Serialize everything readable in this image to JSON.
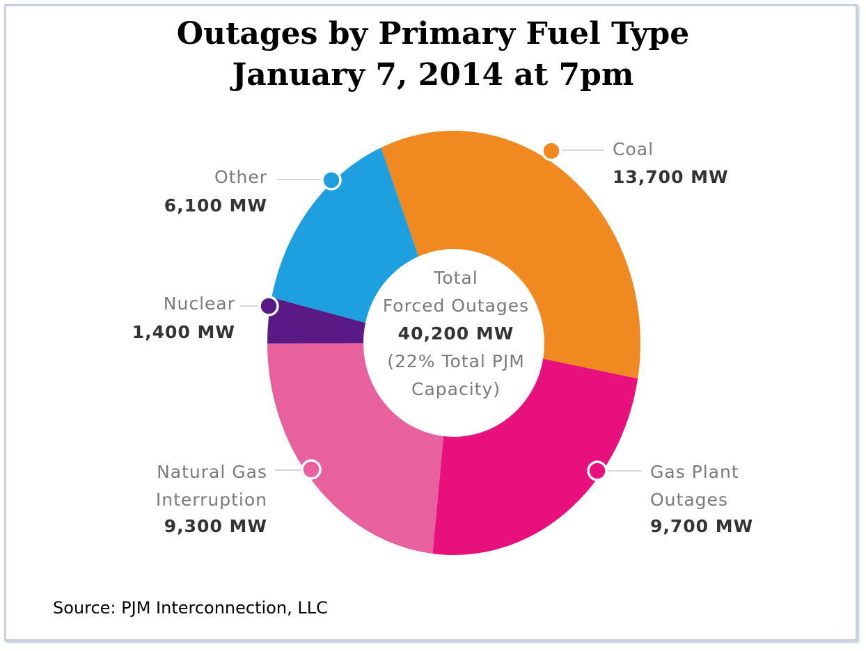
{
  "chart_data": {
    "type": "pie",
    "title": "Outages by Primary Fuel Type",
    "subtitle": "January 7, 2014 at 7pm",
    "unit": "MW",
    "center_label": {
      "line1": "Total",
      "line2": "Forced Outages",
      "value": "40,200 MW",
      "line4": "(22% Total PJM",
      "line5": "Capacity)"
    },
    "slices": [
      {
        "name": "Coal",
        "name_lines": [
          "Coal"
        ],
        "value": 13700,
        "value_label": "13,700 MW",
        "color": "#f0891f"
      },
      {
        "name": "Gas Plant Outages",
        "name_lines": [
          "Gas Plant",
          "Outages"
        ],
        "value": 9700,
        "value_label": "9,700 MW",
        "color": "#e8107c"
      },
      {
        "name": "Natural Gas Interruption",
        "name_lines": [
          "Natural Gas",
          "Interruption"
        ],
        "value": 9300,
        "value_label": "9,300 MW",
        "color": "#e8609e"
      },
      {
        "name": "Nuclear",
        "name_lines": [
          "Nuclear"
        ],
        "value": 1400,
        "value_label": "1,400 MW",
        "color": "#5a1a86"
      },
      {
        "name": "Other",
        "name_lines": [
          "Other"
        ],
        "value": 6100,
        "value_label": "6,100 MW",
        "color": "#1ea0e0"
      }
    ]
  },
  "source": "Source: PJM Interconnection, LLC"
}
